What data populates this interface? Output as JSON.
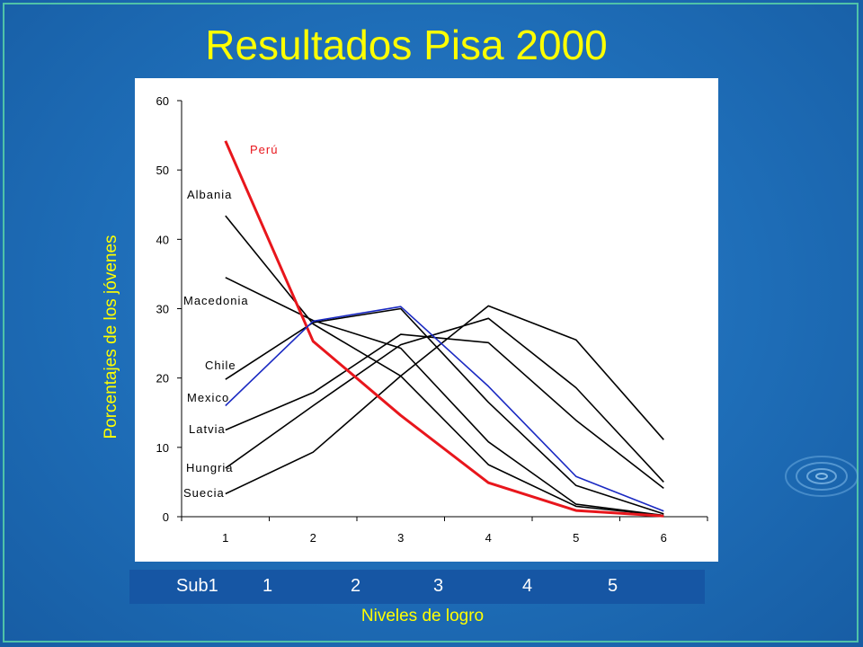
{
  "title": "Resultados Pisa 2000",
  "bottom_bar": [
    "Sub1",
    "1",
    "2",
    "3",
    "4",
    "5"
  ],
  "colors": {
    "background": "#1e6db7",
    "title": "#ffff00",
    "peru_series": "#e8161c",
    "mexico_series": "#1a29c2",
    "other_series": "#000000"
  },
  "chart_data": {
    "type": "line",
    "title": "",
    "xlabel": "Niveles de logro",
    "ylabel": "Porcentajes de los jóvenes",
    "x": [
      "1",
      "2",
      "3",
      "4",
      "5",
      "6"
    ],
    "yticks": [
      "0",
      "10",
      "20",
      "30",
      "40",
      "50",
      "60"
    ],
    "ylim": [
      0,
      60
    ],
    "grid": false,
    "legend": "series labels at left of lines",
    "series": [
      {
        "name": "Perú",
        "color": "#e8161c",
        "values": [
          54.2,
          25.3,
          14.6,
          4.9,
          0.9,
          0.1
        ]
      },
      {
        "name": "Albania",
        "color": "#000000",
        "values": [
          43.4,
          27.8,
          20.3,
          7.5,
          1.5,
          0.2
        ]
      },
      {
        "name": "Macedonia",
        "color": "#000000",
        "values": [
          34.5,
          28.3,
          24.3,
          10.8,
          1.8,
          0.2
        ]
      },
      {
        "name": "Chile",
        "color": "#000000",
        "values": [
          19.8,
          28.0,
          30.0,
          16.5,
          4.5,
          0.4
        ]
      },
      {
        "name": "Mexico",
        "color": "#1a29c2",
        "values": [
          16.0,
          28.2,
          30.3,
          18.8,
          5.8,
          0.8
        ]
      },
      {
        "name": "Latvia",
        "color": "#000000",
        "values": [
          12.5,
          17.9,
          26.3,
          25.1,
          13.9,
          4.1
        ]
      },
      {
        "name": "Hungria",
        "color": "#000000",
        "values": [
          7.0,
          16.0,
          24.8,
          28.6,
          18.6,
          5.0
        ]
      },
      {
        "name": "Suecia",
        "color": "#000000",
        "values": [
          3.3,
          9.3,
          20.3,
          30.4,
          25.5,
          11.1
        ]
      }
    ]
  }
}
